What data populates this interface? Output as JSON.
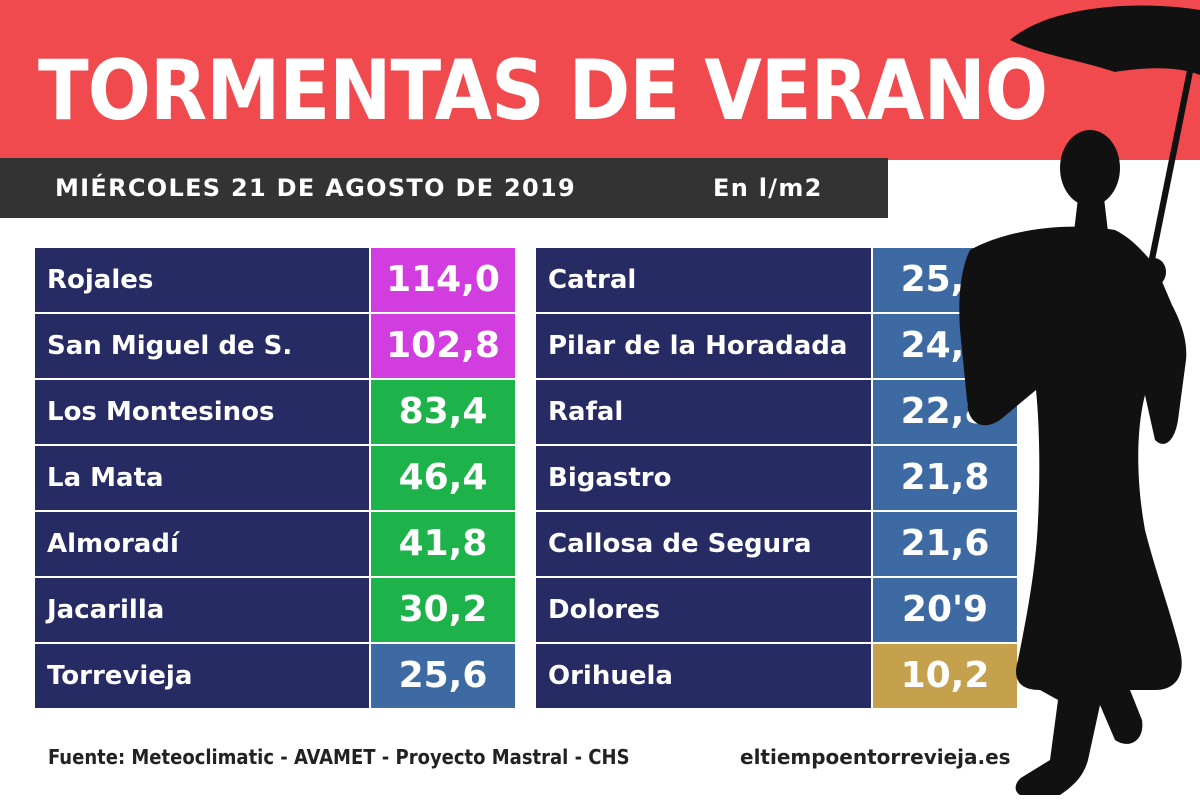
{
  "header": {
    "title": "TORMENTAS DE VERANO",
    "date": "MIÉRCOLES 21 DE AGOSTO DE 2019",
    "unit": "En l/m2"
  },
  "colors": {
    "title_band": "#f04a4e",
    "date_bar": "#333333",
    "name_cell": "#272b63",
    "magenta": "#d13ddf",
    "green": "#1eb24b",
    "steel_blue": "#3d6aa3",
    "gold": "#c5a04d"
  },
  "left_table": [
    {
      "name": "Rojales",
      "value": "114,0",
      "color": "#d13ddf"
    },
    {
      "name": "San Miguel de S.",
      "value": "102,8",
      "color": "#d13ddf"
    },
    {
      "name": "Los Montesinos",
      "value": "83,4",
      "color": "#1eb24b"
    },
    {
      "name": "La Mata",
      "value": "46,4",
      "color": "#1eb24b"
    },
    {
      "name": "Almoradí",
      "value": "41,8",
      "color": "#1eb24b"
    },
    {
      "name": "Jacarilla",
      "value": "30,2",
      "color": "#1eb24b"
    },
    {
      "name": "Torrevieja",
      "value": "25,6",
      "color": "#3d6aa3"
    }
  ],
  "right_table": [
    {
      "name": "Catral",
      "value": "25,2",
      "color": "#3d6aa3"
    },
    {
      "name": "Pilar de la Horadada",
      "value": "24,6",
      "color": "#3d6aa3"
    },
    {
      "name": "Rafal",
      "value": "22,8",
      "color": "#3d6aa3"
    },
    {
      "name": "Bigastro",
      "value": "21,8",
      "color": "#3d6aa3"
    },
    {
      "name": "Callosa de Segura",
      "value": "21,6",
      "color": "#3d6aa3"
    },
    {
      "name": "Dolores",
      "value": "20'9",
      "color": "#3d6aa3"
    },
    {
      "name": "Orihuela",
      "value": "10,2",
      "color": "#c5a04d"
    }
  ],
  "footer": {
    "source": "Fuente: Meteoclimatic - AVAMET - Proyecto Mastral - CHS",
    "site": "eltiempoentorrevieja.es"
  },
  "icons": {
    "silhouette": "person-with-umbrella-silhouette-icon"
  }
}
